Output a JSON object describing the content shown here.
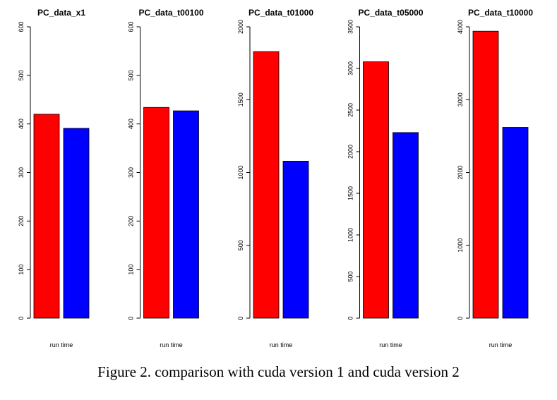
{
  "caption": "Figure 2. comparison with cuda version 1 and cuda version 2",
  "colors": {
    "series1": "#ff0000",
    "series2": "#0000ff"
  },
  "chart_data": [
    {
      "type": "bar",
      "title": "PC_data_x1",
      "xlabel": "run time",
      "ylabel": "",
      "ylim": [
        0,
        600
      ],
      "yticks": [
        0,
        100,
        200,
        300,
        400,
        500,
        600
      ],
      "values": [
        420,
        391
      ]
    },
    {
      "type": "bar",
      "title": "PC_data_t00100",
      "xlabel": "run time",
      "ylabel": "",
      "ylim": [
        0,
        600
      ],
      "yticks": [
        0,
        100,
        200,
        300,
        400,
        500,
        600
      ],
      "values": [
        434,
        427
      ]
    },
    {
      "type": "bar",
      "title": "PC_data_t01000",
      "xlabel": "run time",
      "ylabel": "",
      "ylim": [
        0,
        2000
      ],
      "yticks": [
        0,
        500,
        1000,
        1500,
        2000
      ],
      "values": [
        1830,
        1078
      ]
    },
    {
      "type": "bar",
      "title": "PC_data_t05000",
      "xlabel": "run time",
      "ylabel": "",
      "ylim": [
        0,
        3500
      ],
      "yticks": [
        0,
        500,
        1000,
        1500,
        2000,
        2500,
        3000,
        3500
      ],
      "values": [
        3080,
        2230
      ]
    },
    {
      "type": "bar",
      "title": "PC_data_t10000",
      "xlabel": "run time",
      "ylabel": "",
      "ylim": [
        0,
        4000
      ],
      "yticks": [
        0,
        1000,
        2000,
        3000,
        4000
      ],
      "values": [
        3940,
        2620
      ]
    }
  ]
}
